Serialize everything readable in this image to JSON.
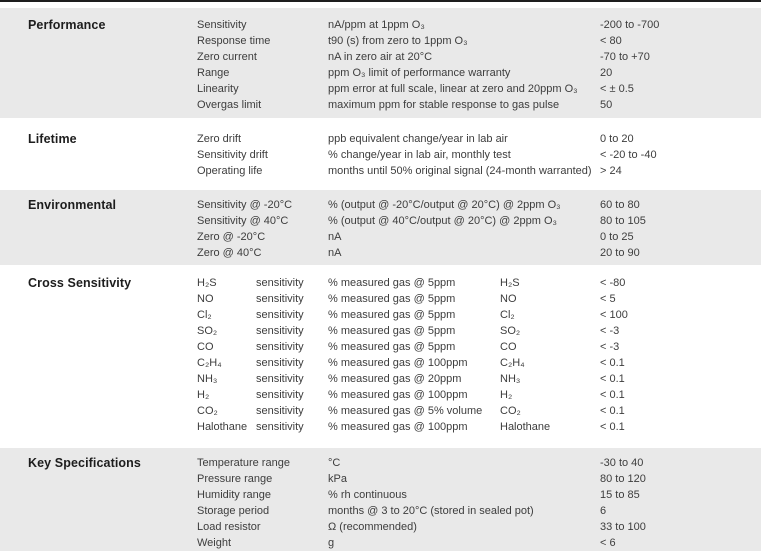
{
  "page": {
    "background": "#ffffff",
    "top_rule_color": "#1e1e1e",
    "section_alt_bg": "#e9e9e9",
    "text_color": "#3d3d3d",
    "heading_color": "#1d1d1d"
  },
  "sections": [
    {
      "title": "Performance",
      "rows": [
        {
          "param": "Sensitivity",
          "desc": "nA/ppm at 1ppm O₃",
          "value": "-200 to -700"
        },
        {
          "param": "Response time",
          "desc": "t90 (s) from zero to 1ppm O₃",
          "value": "< 80"
        },
        {
          "param": "Zero current",
          "desc": "nA in zero air at 20°C",
          "value": "-70 to +70"
        },
        {
          "param": "Range",
          "desc": "ppm O₃ limit of performance warranty",
          "value": "20"
        },
        {
          "param": "Linearity",
          "desc": "ppm error at full scale, linear at zero and 20ppm O₃",
          "value": "< ± 0.5"
        },
        {
          "param": "Overgas limit",
          "desc": "maximum ppm for stable response to gas pulse",
          "value": "50"
        }
      ]
    },
    {
      "title": "Lifetime",
      "rows": [
        {
          "param": "Zero drift",
          "desc": "ppb equivalent change/year in lab air",
          "value": "0 to 20"
        },
        {
          "param": "Sensitivity drift",
          "desc": "% change/year in lab air, monthly test",
          "value": "< -20 to -40"
        },
        {
          "param": "Operating life",
          "desc": "months until 50% original signal (24-month warranted)",
          "value": "> 24"
        }
      ]
    },
    {
      "title": "Environmental",
      "rows": [
        {
          "param": "Sensitivity @ -20°C",
          "desc": "% (output @ -20°C/output @ 20°C) @ 2ppm O₃",
          "value": "60 to 80"
        },
        {
          "param": "Sensitivity @ 40°C",
          "desc": "% (output @ 40°C/output @ 20°C) @ 2ppm O₃",
          "value": "80 to 105"
        },
        {
          "param": "Zero @ -20°C",
          "desc": "nA",
          "value": "0 to 25"
        },
        {
          "param": "Zero @ 40°C",
          "desc": "nA",
          "value": "20 to 90"
        }
      ]
    },
    {
      "title": "Cross Sensitivity",
      "rows": [
        {
          "gas": "H₂S",
          "label": "sensitivity",
          "desc": "% measured gas @ 5ppm",
          "gas2": "H₂S",
          "value": "< -80"
        },
        {
          "gas": "NO",
          "label": "sensitivity",
          "desc": "% measured gas @ 5ppm",
          "gas2": "NO",
          "value": "< 5"
        },
        {
          "gas": "Cl₂",
          "label": "sensitivity",
          "desc": "% measured gas @ 5ppm",
          "gas2": "Cl₂",
          "value": "< 100"
        },
        {
          "gas": "SO₂",
          "label": "sensitivity",
          "desc": "% measured gas @ 5ppm",
          "gas2": "SO₂",
          "value": "< -3"
        },
        {
          "gas": "CO",
          "label": "sensitivity",
          "desc": "% measured gas @ 5ppm",
          "gas2": "CO",
          "value": "< -3"
        },
        {
          "gas": "C₂H₄",
          "label": "sensitivity",
          "desc": "% measured gas @ 100ppm",
          "gas2": "C₂H₄",
          "value": "< 0.1"
        },
        {
          "gas": "NH₃",
          "label": "sensitivity",
          "desc": "% measured gas @ 20ppm",
          "gas2": "NH₃",
          "value": "< 0.1"
        },
        {
          "gas": "H₂",
          "label": "sensitivity",
          "desc": "% measured gas @ 100ppm",
          "gas2": "H₂",
          "value": "< 0.1"
        },
        {
          "gas": "CO₂",
          "label": "sensitivity",
          "desc": "% measured gas @ 5% volume",
          "gas2": "CO₂",
          "value": "< 0.1"
        },
        {
          "gas": "Halothane",
          "label": "sensitivity",
          "desc": "% measured gas @ 100ppm",
          "gas2": "Halothane",
          "value": "< 0.1"
        }
      ]
    },
    {
      "title": "Key Specifications",
      "rows": [
        {
          "param": "Temperature range",
          "desc": "°C",
          "value": "-30 to 40"
        },
        {
          "param": "Pressure range",
          "desc": "kPa",
          "value": "80 to 120"
        },
        {
          "param": "Humidity range",
          "desc": "% rh continuous",
          "value": "15 to 85"
        },
        {
          "param": "Storage period",
          "desc": "months @ 3 to 20°C (stored in sealed pot)",
          "value": "6"
        },
        {
          "param": "Load resistor",
          "desc": "Ω (recommended)",
          "value": "33 to 100"
        },
        {
          "param": "Weight",
          "desc": "g",
          "value": "< 6"
        }
      ]
    }
  ]
}
